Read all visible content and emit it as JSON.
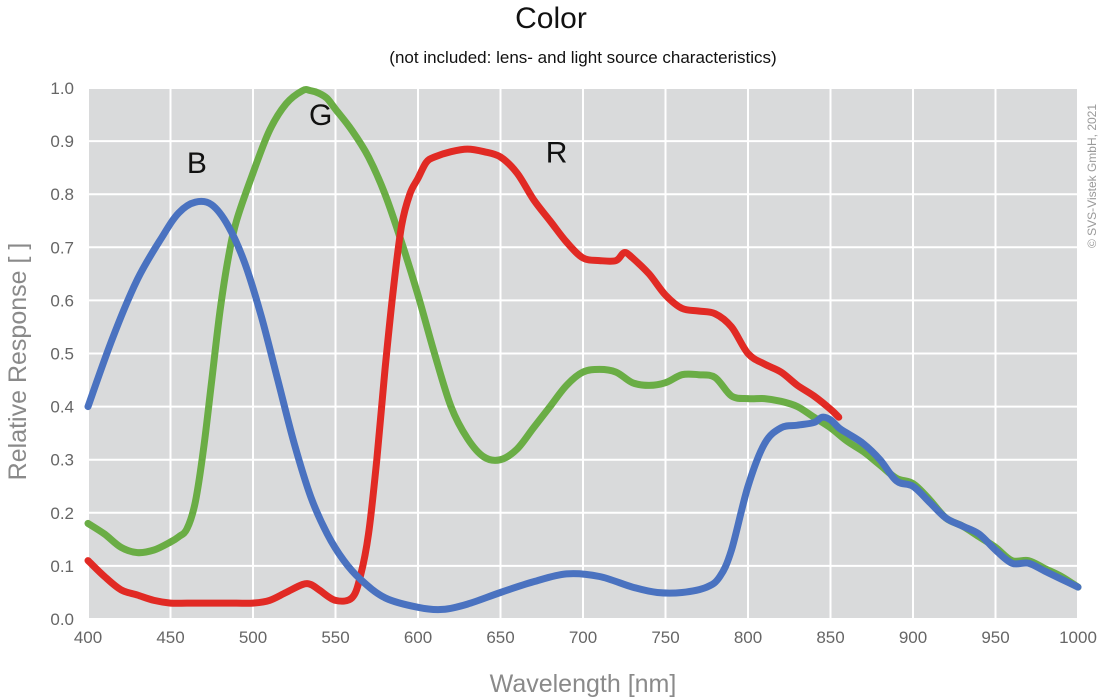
{
  "chart_data": {
    "type": "line",
    "title": "Color",
    "subtitle": "(not included: lens- and light source characteristics)",
    "xlabel": "Wavelength [nm]",
    "ylabel": "Relative Response [ ]",
    "xlim": [
      400,
      1000
    ],
    "ylim": [
      0,
      1
    ],
    "xticks": [
      400,
      450,
      500,
      550,
      600,
      650,
      700,
      750,
      800,
      850,
      900,
      950,
      1000
    ],
    "yticks": [
      "0.0",
      "0.1",
      "0.2",
      "0.3",
      "0.4",
      "0.5",
      "0.6",
      "0.7",
      "0.8",
      "0.9",
      "1.0"
    ],
    "grid": true,
    "colors": {
      "plot_background": "#d9dadb",
      "grid": "#ffffff"
    },
    "copyright": "© SVS-Vistek GmbH, 2021",
    "series": [
      {
        "name": "B",
        "color": "#4a72c0",
        "x": [
          400,
          415,
          430,
          445,
          455,
          465,
          475,
          485,
          495,
          505,
          515,
          525,
          535,
          545,
          555,
          565,
          580,
          600,
          615,
          630,
          650,
          670,
          690,
          710,
          730,
          745,
          760,
          775,
          783,
          790,
          800,
          810,
          820,
          830,
          840,
          845,
          850,
          855,
          860,
          870,
          880,
          890,
          900,
          910,
          920,
          930,
          940,
          950,
          960,
          970,
          980,
          990,
          1000
        ],
        "y": [
          0.4,
          0.53,
          0.64,
          0.72,
          0.765,
          0.785,
          0.78,
          0.74,
          0.67,
          0.57,
          0.45,
          0.33,
          0.23,
          0.16,
          0.11,
          0.075,
          0.04,
          0.022,
          0.018,
          0.028,
          0.05,
          0.07,
          0.085,
          0.08,
          0.06,
          0.05,
          0.05,
          0.06,
          0.08,
          0.13,
          0.25,
          0.33,
          0.36,
          0.365,
          0.37,
          0.38,
          0.375,
          0.36,
          0.35,
          0.33,
          0.3,
          0.26,
          0.25,
          0.22,
          0.19,
          0.175,
          0.16,
          0.13,
          0.105,
          0.105,
          0.09,
          0.075,
          0.06
        ]
      },
      {
        "name": "G",
        "color": "#6aad45",
        "x": [
          400,
          410,
          420,
          430,
          440,
          450,
          455,
          460,
          465,
          470,
          475,
          480,
          485,
          490,
          500,
          510,
          520,
          530,
          535,
          540,
          545,
          550,
          560,
          570,
          580,
          590,
          600,
          610,
          620,
          630,
          640,
          650,
          660,
          670,
          680,
          690,
          700,
          710,
          720,
          730,
          740,
          750,
          760,
          770,
          780,
          790,
          800,
          810,
          820,
          830,
          840,
          850,
          860,
          870,
          880,
          890,
          900,
          910,
          920,
          930,
          940,
          950,
          960,
          970,
          980,
          990,
          1000
        ],
        "y": [
          0.18,
          0.16,
          0.135,
          0.125,
          0.13,
          0.145,
          0.155,
          0.17,
          0.22,
          0.32,
          0.45,
          0.58,
          0.68,
          0.75,
          0.84,
          0.92,
          0.97,
          0.995,
          0.995,
          0.99,
          0.98,
          0.96,
          0.92,
          0.87,
          0.8,
          0.71,
          0.61,
          0.5,
          0.4,
          0.34,
          0.305,
          0.3,
          0.32,
          0.36,
          0.4,
          0.44,
          0.465,
          0.47,
          0.465,
          0.445,
          0.44,
          0.445,
          0.46,
          0.46,
          0.455,
          0.42,
          0.415,
          0.415,
          0.41,
          0.4,
          0.38,
          0.36,
          0.335,
          0.315,
          0.29,
          0.265,
          0.255,
          0.225,
          0.19,
          0.175,
          0.155,
          0.135,
          0.11,
          0.11,
          0.095,
          0.08,
          0.06
        ]
      },
      {
        "name": "R",
        "color": "#e12a24",
        "x": [
          400,
          410,
          420,
          430,
          440,
          450,
          460,
          470,
          480,
          490,
          500,
          510,
          520,
          530,
          535,
          540,
          550,
          560,
          565,
          570,
          575,
          580,
          585,
          590,
          595,
          600,
          605,
          610,
          620,
          630,
          640,
          650,
          660,
          670,
          680,
          690,
          700,
          710,
          720,
          725,
          730,
          740,
          750,
          760,
          770,
          780,
          790,
          800,
          810,
          820,
          830,
          840,
          850,
          855
        ],
        "y": [
          0.11,
          0.08,
          0.055,
          0.045,
          0.035,
          0.03,
          0.03,
          0.03,
          0.03,
          0.03,
          0.03,
          0.035,
          0.05,
          0.065,
          0.065,
          0.055,
          0.035,
          0.04,
          0.08,
          0.16,
          0.3,
          0.47,
          0.62,
          0.74,
          0.8,
          0.83,
          0.86,
          0.87,
          0.88,
          0.885,
          0.88,
          0.87,
          0.84,
          0.79,
          0.75,
          0.71,
          0.68,
          0.675,
          0.675,
          0.69,
          0.68,
          0.65,
          0.61,
          0.585,
          0.58,
          0.575,
          0.55,
          0.5,
          0.48,
          0.465,
          0.44,
          0.42,
          0.395,
          0.38
        ]
      }
    ],
    "annotations": [
      {
        "text": "B",
        "x": 466,
        "y": 0.84
      },
      {
        "text": "G",
        "x": 541,
        "y": 0.93
      },
      {
        "text": "R",
        "x": 684,
        "y": 0.86
      }
    ]
  }
}
